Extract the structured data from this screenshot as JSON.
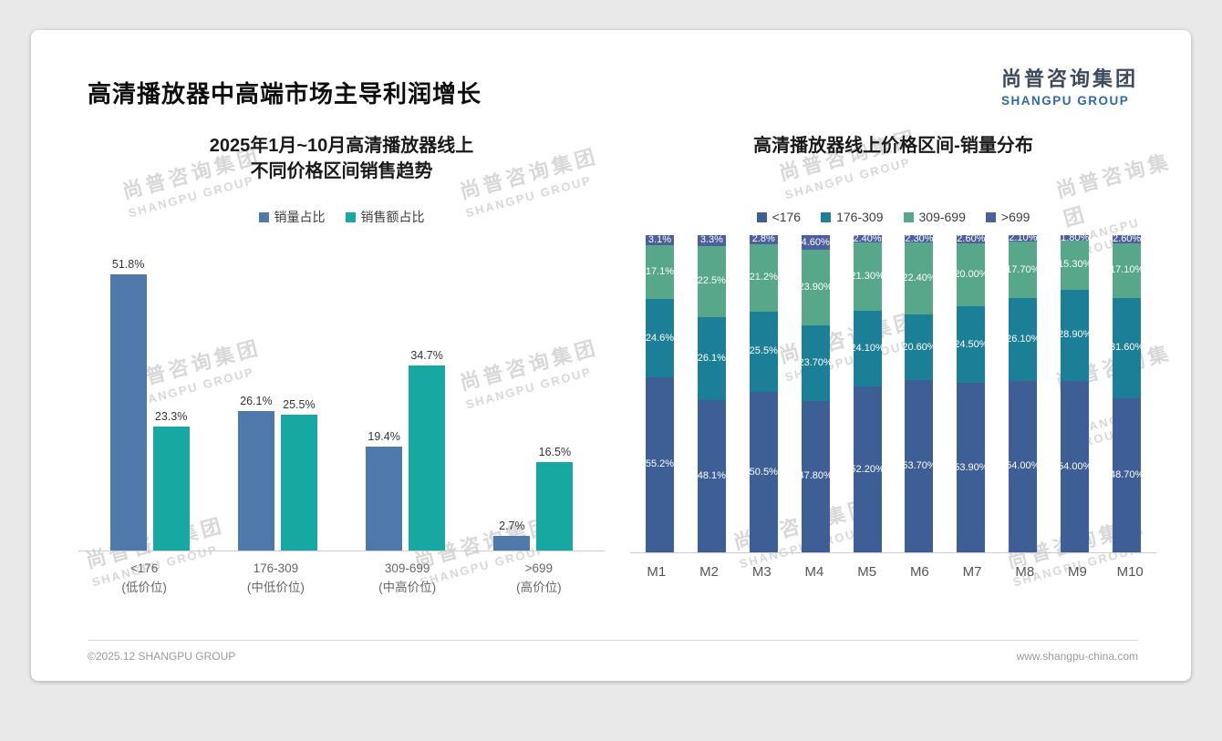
{
  "slide": {
    "title": "高清播放器中高端市场主导利润增长",
    "logo": {
      "cn": "尚普咨询集团",
      "en": "SHANGPU GROUP"
    },
    "footer": {
      "copyright": "©2025.12 SHANGPU GROUP",
      "website": "www.shangpu-china.com"
    },
    "watermark": {
      "cn": "尚普咨询集团",
      "en": "SHANGPU GROUP"
    }
  },
  "chart_data": [
    {
      "type": "bar",
      "title_lines": [
        "2025年1月~10月高清播放器线上",
        "不同价格区间销售趋势"
      ],
      "categories": [
        "<176",
        "176-309",
        "309-699",
        ">699"
      ],
      "category_sublabels": [
        "(低价位)",
        "(中低价位)",
        "(中高价位)",
        "(高价位)"
      ],
      "series": [
        {
          "name": "销量占比",
          "color": "#4f78ab",
          "values": [
            51.8,
            26.1,
            19.4,
            2.7
          ],
          "labels": [
            "51.8%",
            "26.1%",
            "19.4%",
            "2.7%"
          ]
        },
        {
          "name": "销售额占比",
          "color": "#17a9a1",
          "values": [
            23.3,
            25.5,
            34.7,
            16.5
          ],
          "labels": [
            "23.3%",
            "25.5%",
            "34.7%",
            "16.5%"
          ]
        }
      ],
      "ylim": [
        0,
        55
      ],
      "legend_position": "top",
      "grid": false
    },
    {
      "type": "stacked-bar",
      "title": "高清播放器线上价格区间-销量分布",
      "categories": [
        "M1",
        "M2",
        "M3",
        "M4",
        "M5",
        "M6",
        "M7",
        "M8",
        "M9",
        "M10"
      ],
      "series": [
        {
          "name": "<176",
          "color": "#3e5f96",
          "values": [
            55.2,
            48.1,
            50.5,
            47.8,
            52.2,
            53.7,
            53.9,
            54.0,
            54.0,
            48.7
          ],
          "labels": [
            "55.2%",
            "48.1%",
            "50.5%",
            "47.80%",
            "52.20%",
            "53.70%",
            "53.90%",
            "54.00%",
            "54.00%",
            "48.70%"
          ]
        },
        {
          "name": "176-309",
          "color": "#1a7f97",
          "values": [
            24.6,
            26.1,
            25.5,
            23.7,
            24.1,
            20.6,
            24.5,
            26.1,
            28.9,
            31.6
          ],
          "labels": [
            "24.6%",
            "26.1%",
            "25.5%",
            "23.70%",
            "24.10%",
            "20.60%",
            "24.50%",
            "26.10%",
            "28.90%",
            "31.60%"
          ]
        },
        {
          "name": "309-699",
          "color": "#57a88a",
          "values": [
            17.1,
            22.5,
            21.2,
            23.9,
            21.3,
            22.4,
            20.0,
            17.7,
            15.3,
            17.1
          ],
          "labels": [
            "17.1%",
            "22.5%",
            "21.2%",
            "23.90%",
            "21.30%",
            "22.40%",
            "20.00%",
            "17.70%",
            "15.30%",
            "17.10%"
          ]
        },
        {
          "name": ">699",
          "color": "#4d5f9d",
          "values": [
            3.1,
            3.3,
            2.8,
            4.6,
            2.4,
            2.3,
            2.6,
            2.1,
            1.8,
            2.6
          ],
          "labels": [
            "3.1%",
            "3.3%",
            "2.8%",
            "4.60%",
            "2.40%",
            "2.30%",
            "2.60%",
            "2.10%",
            "1.80%",
            "2.60%"
          ]
        }
      ],
      "ylim": [
        0,
        100
      ],
      "legend_position": "top",
      "grid": false
    }
  ]
}
